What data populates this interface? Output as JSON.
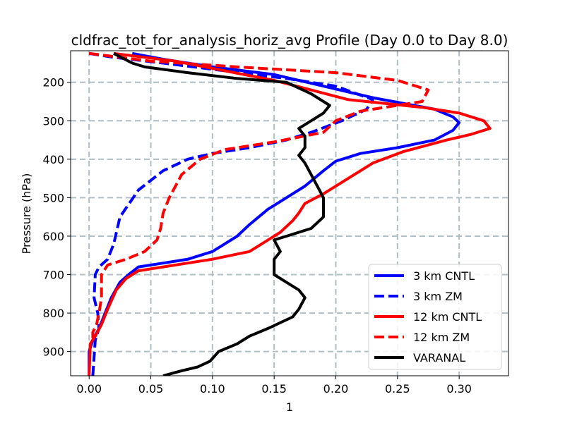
{
  "chart_data": {
    "type": "line",
    "title": "cldfrac_tot_for_analysis_horiz_avg Profile (Day 0.0 to Day 8.0)",
    "xlabel": "1",
    "ylabel": "Pressure (hPa)",
    "xlim": [
      -0.015,
      0.34
    ],
    "ylim": [
      963,
      118
    ],
    "y_inverted": true,
    "grid": true,
    "legend_position": "lower-right",
    "xticks": [
      0.0,
      0.05,
      0.1,
      0.15,
      0.2,
      0.25,
      0.3
    ],
    "xtick_labels": [
      "0.00",
      "0.05",
      "0.10",
      "0.15",
      "0.20",
      "0.25",
      "0.30"
    ],
    "yticks": [
      200,
      300,
      400,
      500,
      600,
      700,
      800,
      900
    ],
    "ytick_labels": [
      "200",
      "300",
      "400",
      "500",
      "600",
      "700",
      "800",
      "900"
    ],
    "series": [
      {
        "name": "3 km CNTL",
        "color": "#0000ff",
        "dash": "solid",
        "points": [
          [
            0.035,
            125
          ],
          [
            0.06,
            140
          ],
          [
            0.1,
            160
          ],
          [
            0.15,
            180
          ],
          [
            0.19,
            210
          ],
          [
            0.23,
            240
          ],
          [
            0.28,
            270
          ],
          [
            0.295,
            290
          ],
          [
            0.3,
            305
          ],
          [
            0.295,
            325
          ],
          [
            0.28,
            350
          ],
          [
            0.25,
            370
          ],
          [
            0.22,
            385
          ],
          [
            0.2,
            405
          ],
          [
            0.19,
            430
          ],
          [
            0.175,
            470
          ],
          [
            0.16,
            500
          ],
          [
            0.145,
            530
          ],
          [
            0.13,
            570
          ],
          [
            0.12,
            600
          ],
          [
            0.11,
            620
          ],
          [
            0.1,
            640
          ],
          [
            0.08,
            660
          ],
          [
            0.06,
            670
          ],
          [
            0.04,
            680
          ],
          [
            0.032,
            700
          ],
          [
            0.025,
            720
          ],
          [
            0.018,
            760
          ],
          [
            0.013,
            800
          ],
          [
            0.008,
            840
          ],
          [
            0.003,
            870
          ],
          [
            0.0,
            900
          ],
          [
            0.0,
            963
          ]
        ]
      },
      {
        "name": "3 km ZM",
        "color": "#0000ff",
        "dash": "dashed",
        "points": [
          [
            0.0,
            125
          ],
          [
            0.02,
            135
          ],
          [
            0.06,
            150
          ],
          [
            0.11,
            170
          ],
          [
            0.16,
            190
          ],
          [
            0.2,
            210
          ],
          [
            0.23,
            245
          ],
          [
            0.225,
            270
          ],
          [
            0.205,
            300
          ],
          [
            0.18,
            330
          ],
          [
            0.16,
            350
          ],
          [
            0.13,
            370
          ],
          [
            0.1,
            385
          ],
          [
            0.08,
            400
          ],
          [
            0.06,
            430
          ],
          [
            0.04,
            480
          ],
          [
            0.025,
            550
          ],
          [
            0.02,
            620
          ],
          [
            0.015,
            660
          ],
          [
            0.008,
            680
          ],
          [
            0.005,
            700
          ],
          [
            0.004,
            760
          ],
          [
            0.007,
            800
          ],
          [
            0.008,
            840
          ],
          [
            0.005,
            870
          ],
          [
            0.003,
            963
          ]
        ]
      },
      {
        "name": "12 km CNTL",
        "color": "#ff0000",
        "dash": "solid",
        "points": [
          [
            0.02,
            125
          ],
          [
            0.07,
            145
          ],
          [
            0.11,
            170
          ],
          [
            0.15,
            195
          ],
          [
            0.18,
            220
          ],
          [
            0.21,
            245
          ],
          [
            0.24,
            255
          ],
          [
            0.27,
            265
          ],
          [
            0.3,
            280
          ],
          [
            0.32,
            300
          ],
          [
            0.325,
            320
          ],
          [
            0.31,
            335
          ],
          [
            0.29,
            350
          ],
          [
            0.255,
            380
          ],
          [
            0.23,
            410
          ],
          [
            0.21,
            450
          ],
          [
            0.19,
            490
          ],
          [
            0.175,
            515
          ],
          [
            0.17,
            540
          ],
          [
            0.165,
            560
          ],
          [
            0.155,
            590
          ],
          [
            0.14,
            620
          ],
          [
            0.13,
            640
          ],
          [
            0.1,
            660
          ],
          [
            0.07,
            675
          ],
          [
            0.04,
            690
          ],
          [
            0.03,
            710
          ],
          [
            0.022,
            740
          ],
          [
            0.015,
            790
          ],
          [
            0.01,
            830
          ],
          [
            0.005,
            860
          ],
          [
            0.001,
            880
          ],
          [
            0.0,
            963
          ]
        ]
      },
      {
        "name": "12 km ZM",
        "color": "#ff0000",
        "dash": "dashed",
        "points": [
          [
            0.0,
            125
          ],
          [
            0.05,
            145
          ],
          [
            0.12,
            160
          ],
          [
            0.2,
            175
          ],
          [
            0.25,
            195
          ],
          [
            0.275,
            220
          ],
          [
            0.27,
            250
          ],
          [
            0.22,
            275
          ],
          [
            0.2,
            300
          ],
          [
            0.19,
            330
          ],
          [
            0.15,
            355
          ],
          [
            0.11,
            375
          ],
          [
            0.09,
            400
          ],
          [
            0.075,
            440
          ],
          [
            0.07,
            470
          ],
          [
            0.065,
            500
          ],
          [
            0.06,
            540
          ],
          [
            0.058,
            580
          ],
          [
            0.055,
            610
          ],
          [
            0.045,
            640
          ],
          [
            0.03,
            660
          ],
          [
            0.015,
            675
          ],
          [
            0.01,
            700
          ],
          [
            0.01,
            760
          ],
          [
            0.008,
            800
          ],
          [
            0.006,
            830
          ],
          [
            0.003,
            850
          ],
          [
            0.003,
            870
          ]
        ]
      },
      {
        "name": "VARANAL",
        "color": "#000000",
        "dash": "solid",
        "points": [
          [
            0.02,
            125
          ],
          [
            0.035,
            150
          ],
          [
            0.045,
            160
          ],
          [
            0.08,
            175
          ],
          [
            0.12,
            190
          ],
          [
            0.16,
            200
          ],
          [
            0.18,
            230
          ],
          [
            0.195,
            260
          ],
          [
            0.19,
            280
          ],
          [
            0.18,
            300
          ],
          [
            0.17,
            320
          ],
          [
            0.175,
            340
          ],
          [
            0.175,
            370
          ],
          [
            0.17,
            390
          ],
          [
            0.175,
            410
          ],
          [
            0.18,
            440
          ],
          [
            0.185,
            470
          ],
          [
            0.19,
            500
          ],
          [
            0.19,
            550
          ],
          [
            0.18,
            580
          ],
          [
            0.16,
            600
          ],
          [
            0.15,
            610
          ],
          [
            0.155,
            640
          ],
          [
            0.15,
            660
          ],
          [
            0.15,
            700
          ],
          [
            0.16,
            720
          ],
          [
            0.17,
            740
          ],
          [
            0.175,
            760
          ],
          [
            0.17,
            790
          ],
          [
            0.165,
            810
          ],
          [
            0.145,
            840
          ],
          [
            0.13,
            860
          ],
          [
            0.12,
            880
          ],
          [
            0.105,
            900
          ],
          [
            0.098,
            925
          ],
          [
            0.088,
            940
          ],
          [
            0.075,
            950
          ],
          [
            0.06,
            963
          ]
        ]
      }
    ]
  }
}
